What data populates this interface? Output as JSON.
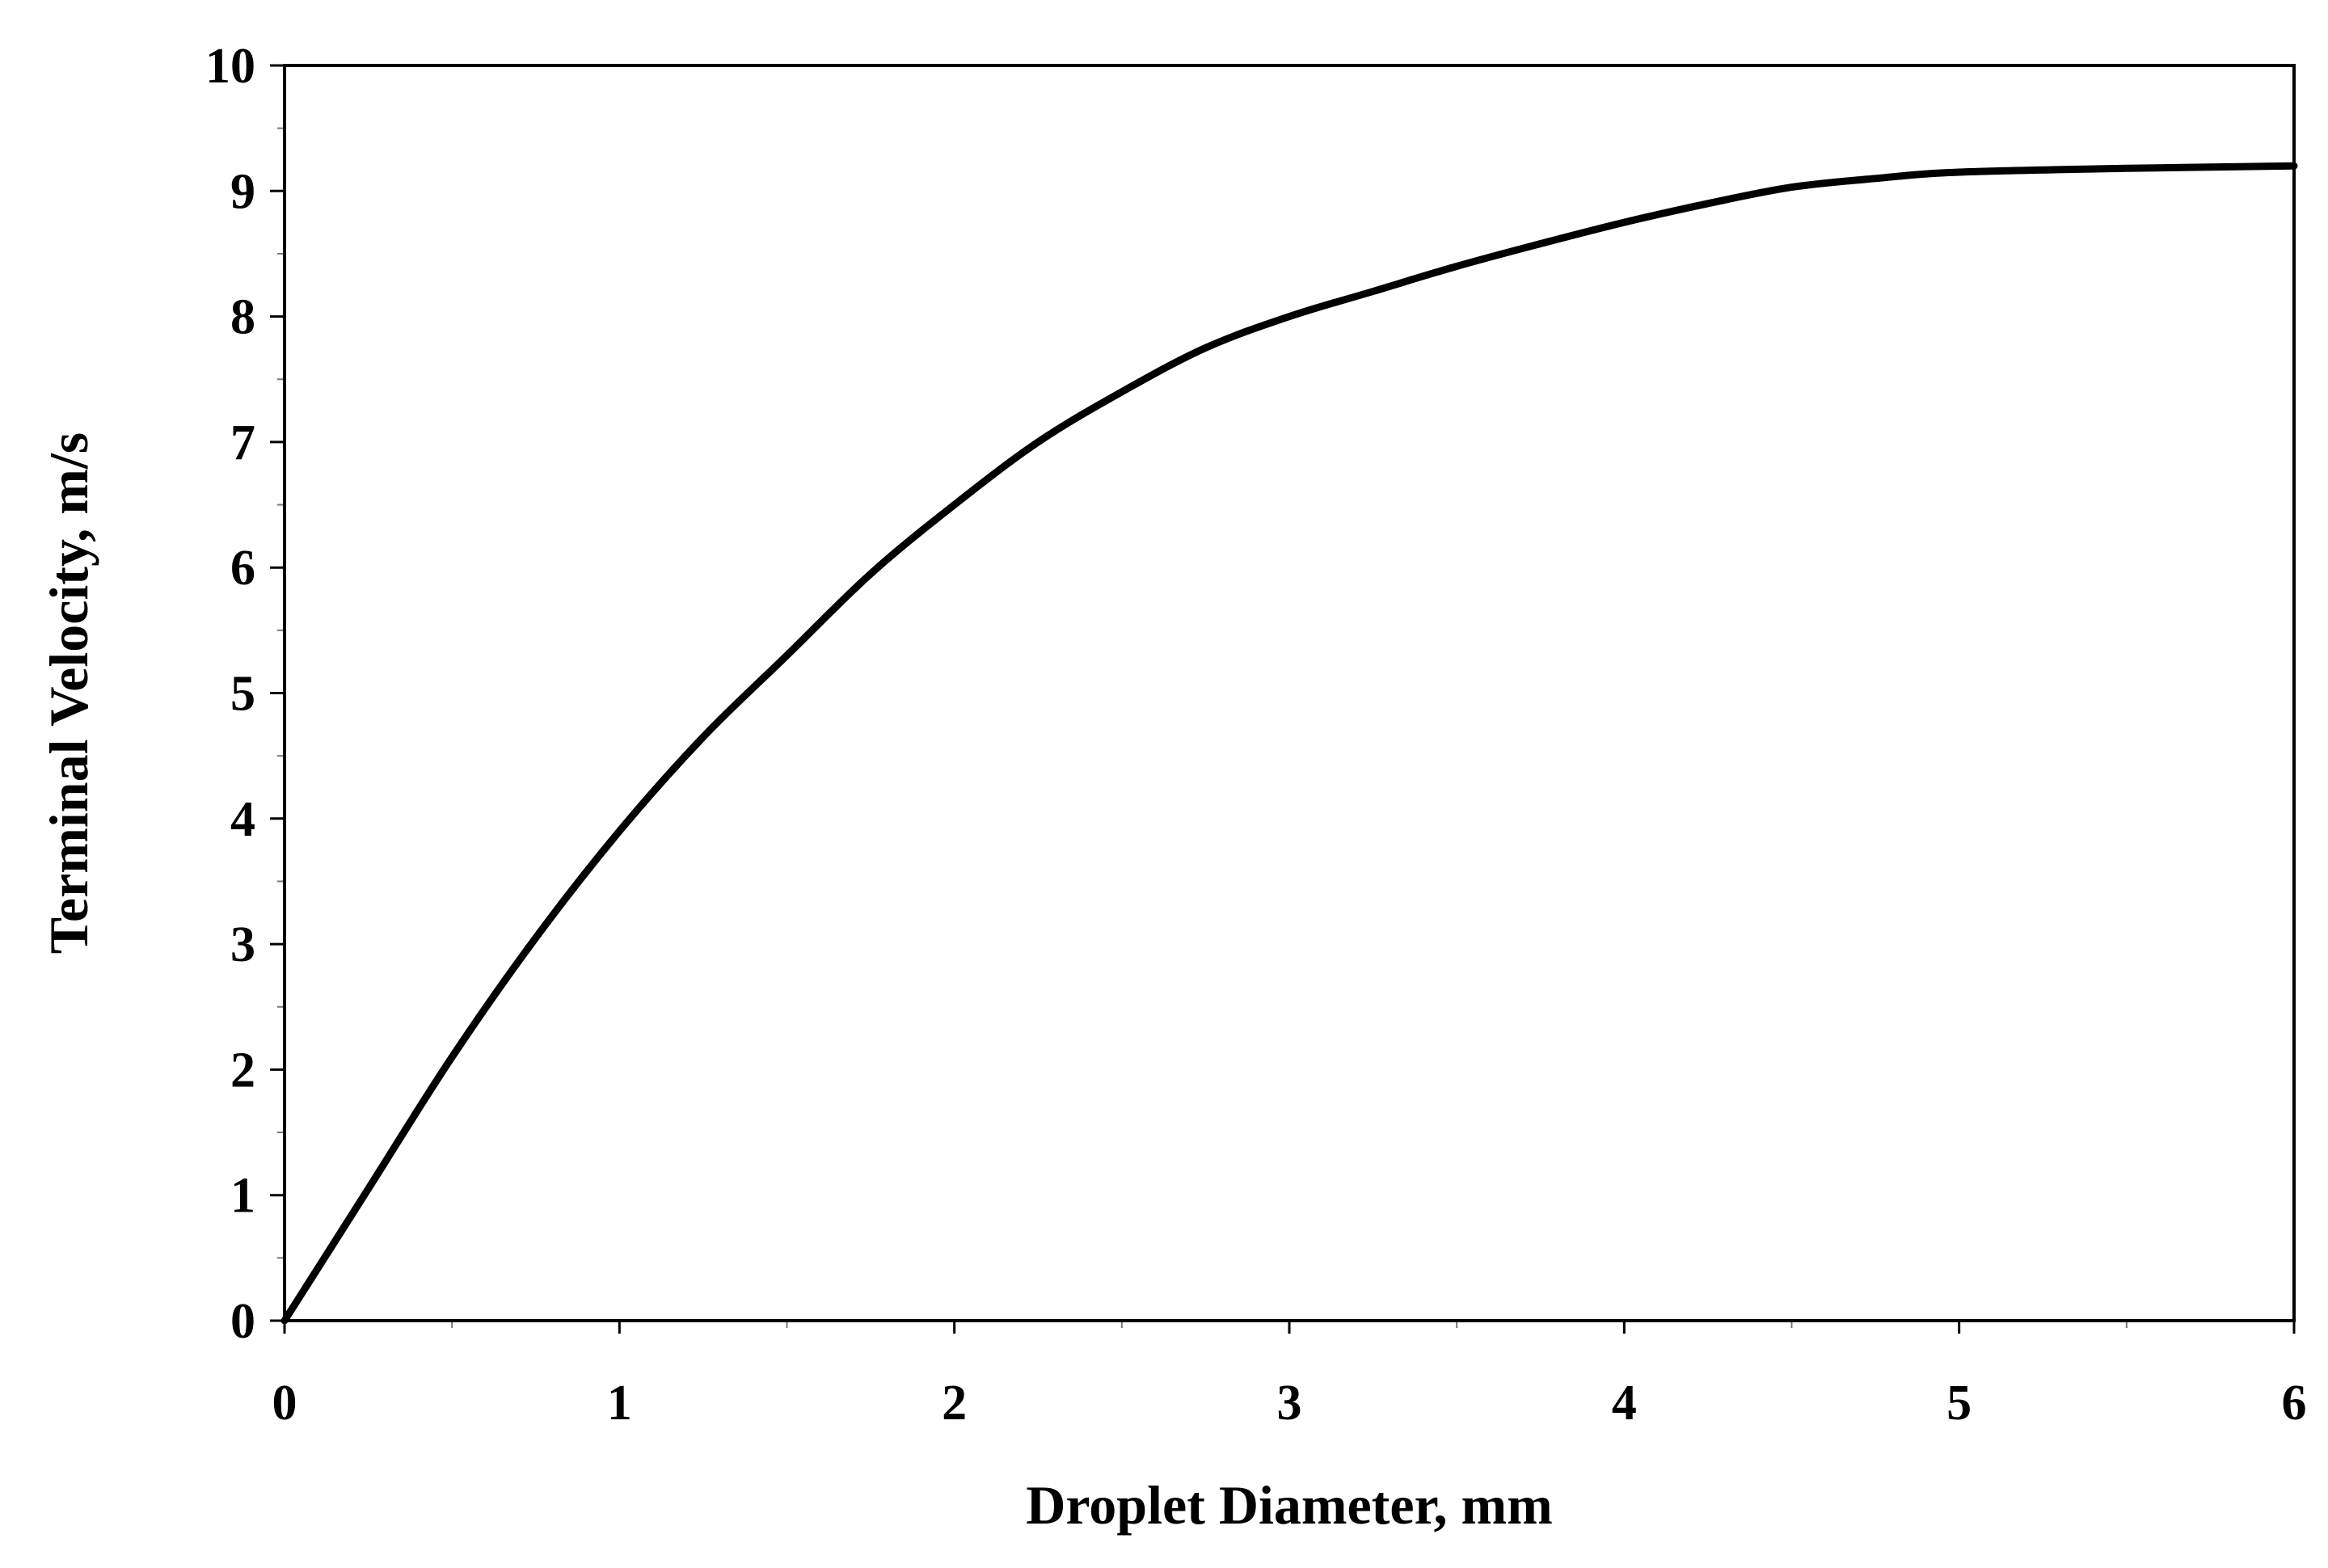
{
  "chart_data": {
    "type": "line",
    "title": "",
    "xlabel": "Droplet Diameter, mm",
    "ylabel": "Terminal Velocity, m/s",
    "xlim": [
      0,
      6
    ],
    "ylim": [
      0,
      10
    ],
    "x_ticks": [
      "0",
      "1",
      "2",
      "3",
      "4",
      "5",
      "6"
    ],
    "y_ticks": [
      "0",
      "1",
      "2",
      "3",
      "4",
      "5",
      "6",
      "7",
      "8",
      "9",
      "10"
    ],
    "grid": false,
    "legend": "none",
    "line_color": "#000000",
    "series": [
      {
        "x": [
          0,
          0.25,
          0.5,
          0.75,
          1.0,
          1.25,
          1.5,
          1.75,
          2.0,
          2.25,
          2.5,
          2.75,
          3.0,
          3.25,
          3.5,
          3.75,
          4.0,
          4.25,
          4.5,
          4.75,
          5.0,
          5.5,
          6.0
        ],
        "y": [
          0,
          1.05,
          2.1,
          3.05,
          3.9,
          4.65,
          5.3,
          5.95,
          6.5,
          7.0,
          7.4,
          7.75,
          8.0,
          8.2,
          8.4,
          8.58,
          8.75,
          8.9,
          9.03,
          9.1,
          9.15,
          9.18,
          9.2
        ]
      }
    ]
  }
}
